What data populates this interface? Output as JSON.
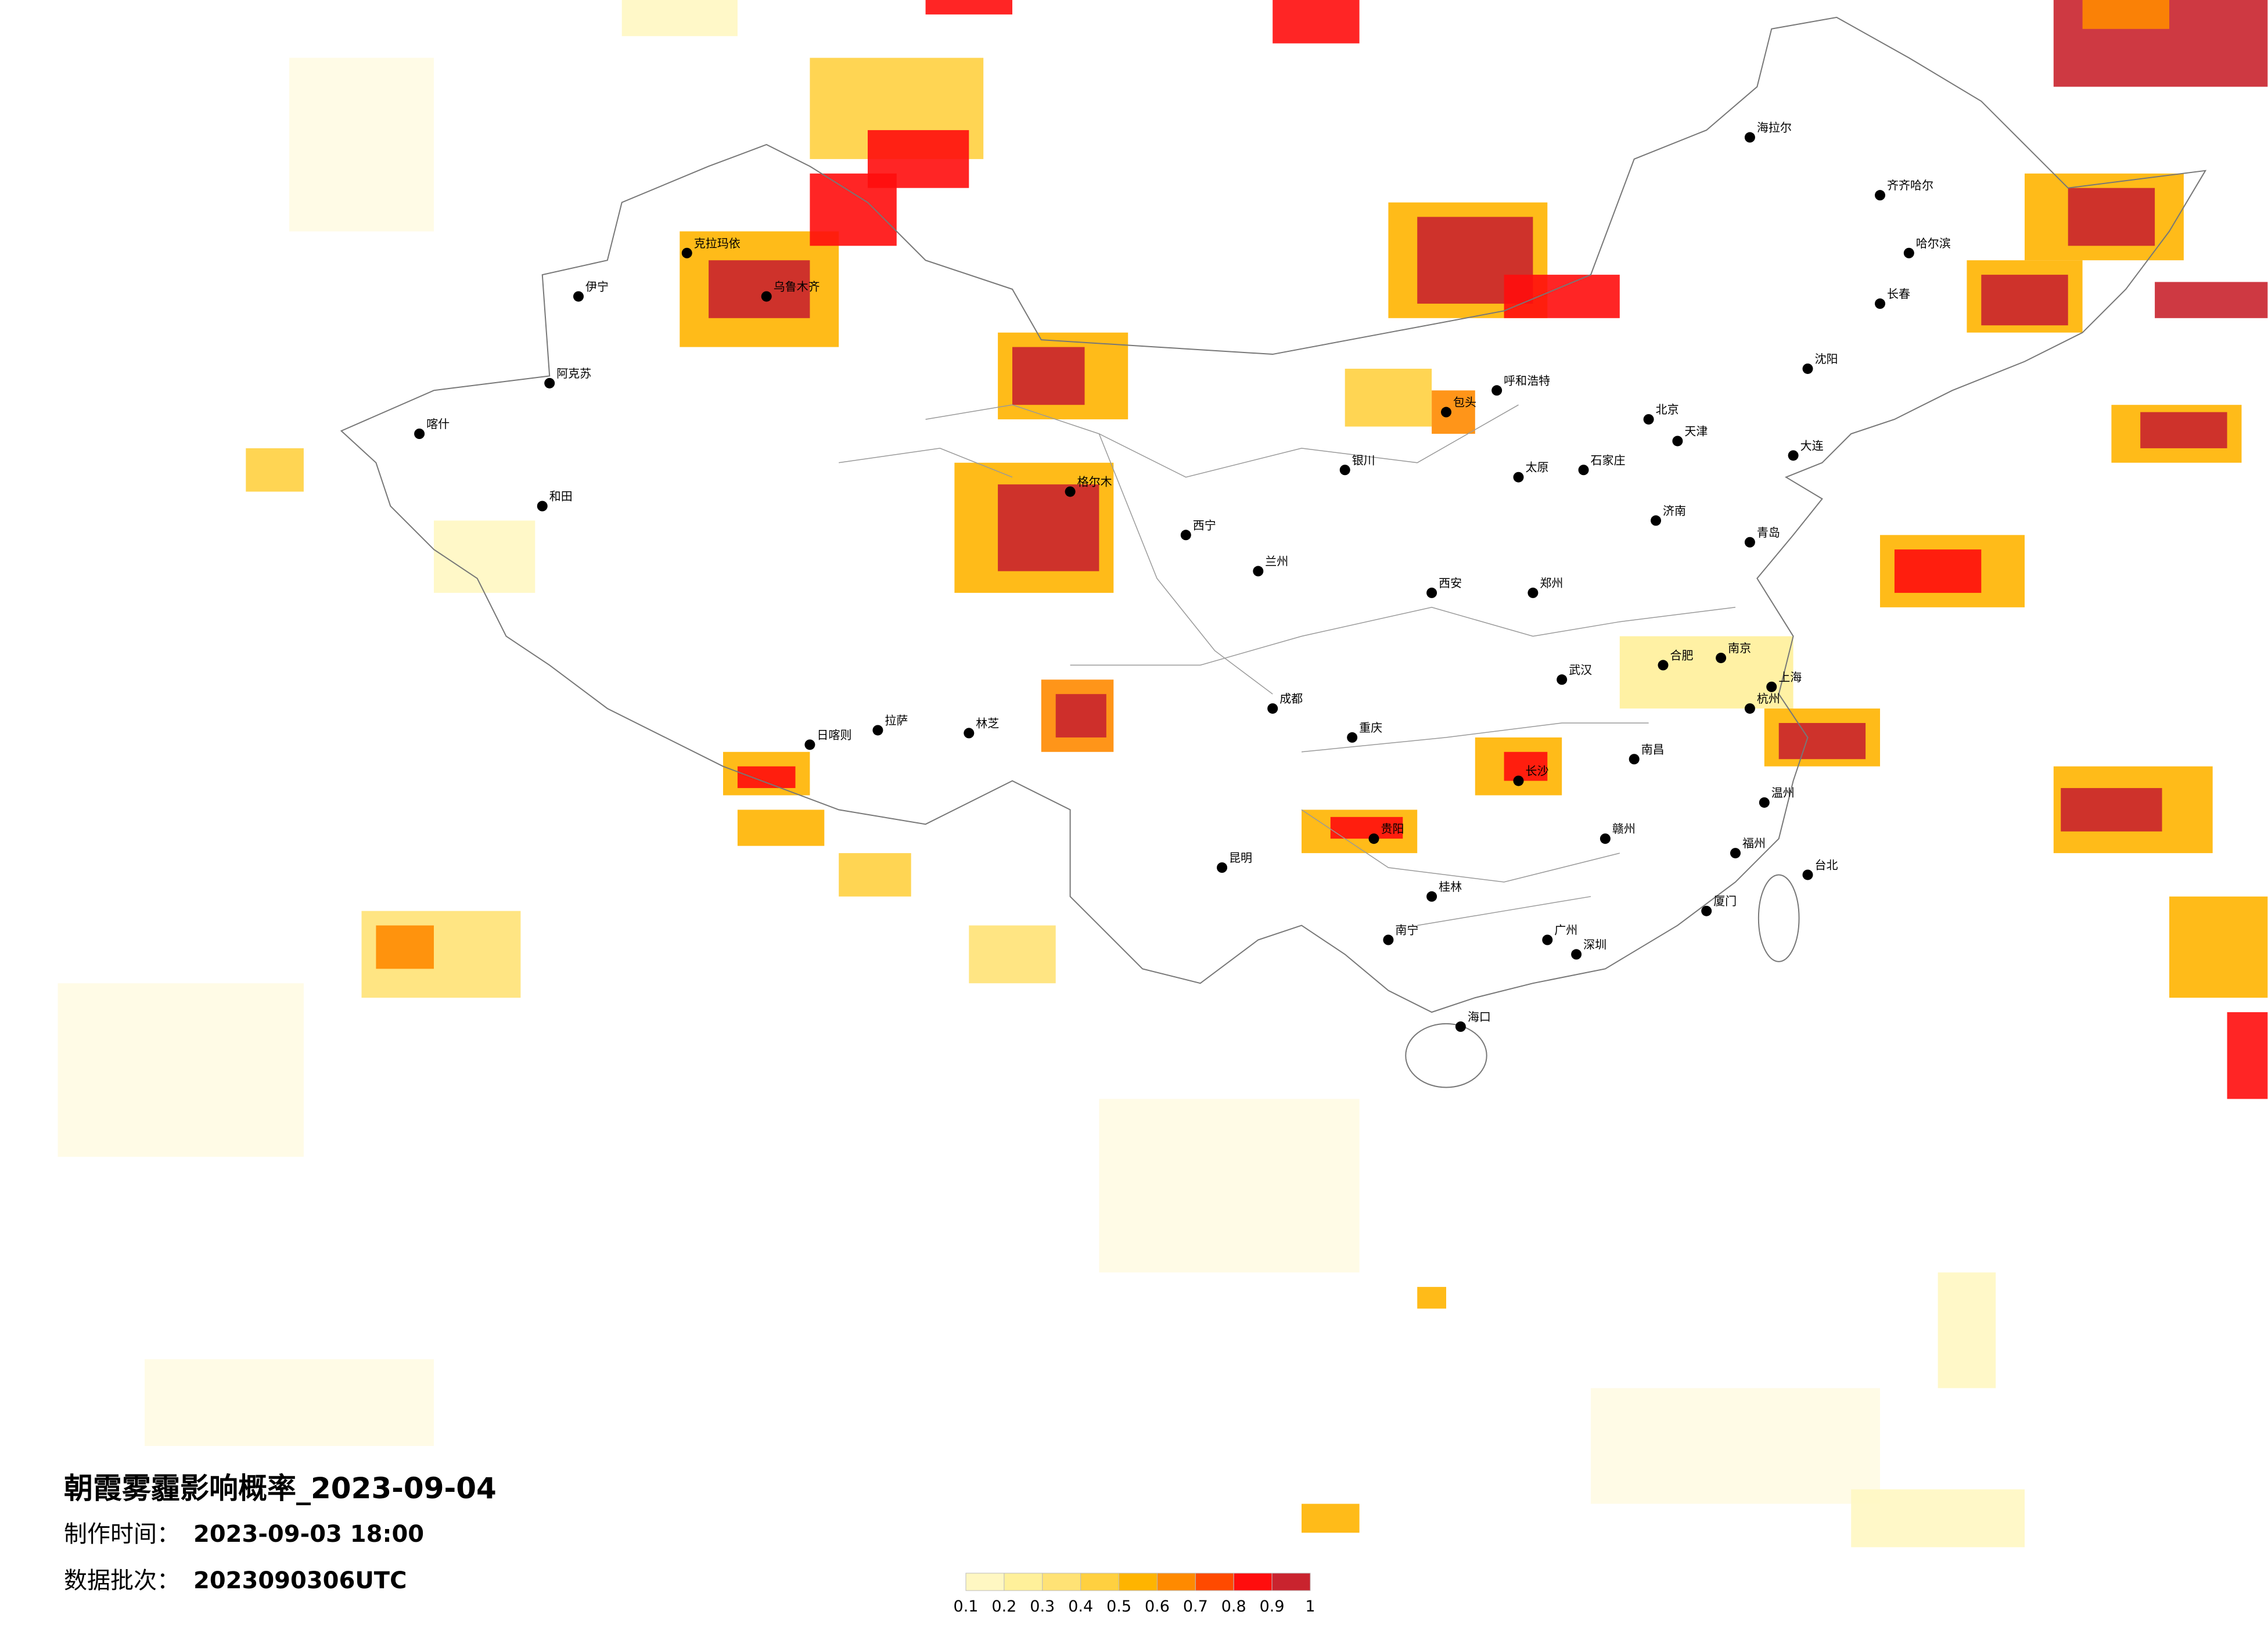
{
  "title": "朝霞雾霾影响概率_2023-09-04",
  "made_label": "制作时间：",
  "made_time": "2023-09-03 18:00",
  "batch_label": "数据批次：",
  "batch": "2023090306UTC",
  "legend": {
    "levels": [
      0.1,
      0.2,
      0.3,
      0.4,
      0.5,
      0.6,
      0.7,
      0.8,
      0.9,
      1
    ],
    "colors": [
      "#fffbe3",
      "#fff7c2",
      "#fff09a",
      "#ffe275",
      "#ffd040",
      "#ffb400",
      "#ff8a00",
      "#ff4a00",
      "#ff0d0d",
      "#c9232e"
    ]
  },
  "cities": [
    "北京",
    "天津",
    "上海",
    "广州",
    "深圳",
    "重庆",
    "成都",
    "武汉",
    "西安",
    "南京",
    "杭州",
    "长沙",
    "郑州",
    "济南",
    "沈阳",
    "长春",
    "哈尔滨",
    "呼和浩特",
    "太原",
    "石家庄",
    "银川",
    "兰州",
    "西宁",
    "拉萨",
    "乌鲁木齐",
    "昆明",
    "贵阳",
    "南宁",
    "海口",
    "南昌",
    "福州",
    "合肥",
    "台北",
    "青岛",
    "大连",
    "喀什",
    "和田",
    "伊宁",
    "格尔木",
    "齐齐哈尔",
    "海拉尔",
    "日喀则",
    "林芝",
    "克拉玛依",
    "阿克苏",
    "包头",
    "赣州",
    "桂林",
    "厦门",
    "温州"
  ]
}
